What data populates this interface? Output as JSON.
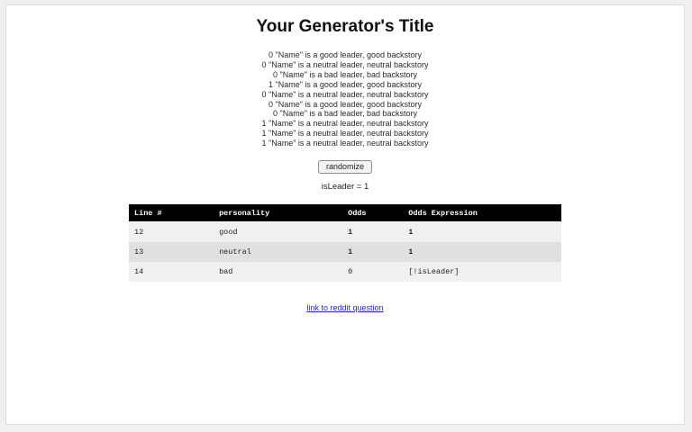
{
  "page": {
    "title": "Your Generator's Title",
    "output_lines": [
      "0 \"Name\" is a good leader, good backstory",
      "0 \"Name\" is a neutral leader, neutral backstory",
      "0 \"Name\" is a bad leader, bad backstory",
      "1 \"Name\" is a good leader, good backstory",
      "0 \"Name\" is a neutral leader, neutral backstory",
      "0 \"Name\" is a good leader, good backstory",
      "0 \"Name\" is a bad leader, bad backstory",
      "1 \"Name\" is a neutral leader, neutral backstory",
      "1 \"Name\" is a neutral leader, neutral backstory",
      "1 \"Name\" is a neutral leader, neutral backstory"
    ],
    "randomize_label": "randomize",
    "status_text": "isLeader = 1",
    "link_text": "link to reddit question"
  },
  "table": {
    "headers": [
      "Line #",
      "personality",
      "Odds",
      "Odds Expression"
    ],
    "rows": [
      {
        "line": "12",
        "personality": "good",
        "odds": "1",
        "expression": "1"
      },
      {
        "line": "13",
        "personality": "neutral",
        "odds": "1",
        "expression": "1"
      },
      {
        "line": "14",
        "personality": "bad",
        "odds": "0",
        "expression": "[!isLeader]"
      }
    ]
  },
  "colors": {
    "header_bg": "#000000",
    "header_text": "#ffffff",
    "row_light": "#f0f0f0",
    "row_dark": "#e0e0e0",
    "link": "#2323cc"
  }
}
